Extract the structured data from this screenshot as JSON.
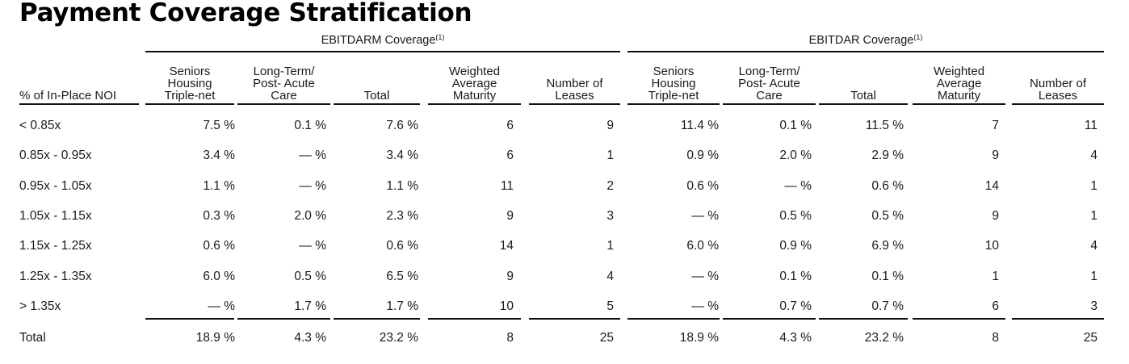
{
  "title": "Payment Coverage Stratification",
  "groups": {
    "ebitdarm": {
      "label": "EBITDARM Coverage",
      "footnote": "(1)"
    },
    "ebitdar": {
      "label": "EBITDAR Coverage",
      "footnote": "(1)"
    }
  },
  "headers": {
    "label": "% of In-Place NOI",
    "shtn": [
      "Seniors",
      "Housing",
      "Triple-net"
    ],
    "ltpac": [
      "Long-Term/",
      "Post- Acute",
      "Care"
    ],
    "total": "Total",
    "wam": [
      "Weighted",
      "Average",
      "Maturity"
    ],
    "leases": [
      "Number of",
      "Leases"
    ]
  },
  "rows": [
    {
      "label": "< 0.85x",
      "cells": [
        "7.5 %",
        "0.1 %",
        "7.6 %",
        "6",
        "9",
        "11.4 %",
        "0.1 %",
        "11.5 %",
        "7",
        "11"
      ]
    },
    {
      "label": "0.85x - 0.95x",
      "cells": [
        "3.4 %",
        "— %",
        "3.4 %",
        "6",
        "1",
        "0.9 %",
        "2.0 %",
        "2.9 %",
        "9",
        "4"
      ]
    },
    {
      "label": "0.95x - 1.05x",
      "cells": [
        "1.1 %",
        "— %",
        "1.1 %",
        "11",
        "2",
        "0.6 %",
        "— %",
        "0.6 %",
        "14",
        "1"
      ]
    },
    {
      "label": "1.05x - 1.15x",
      "cells": [
        "0.3 %",
        "2.0 %",
        "2.3 %",
        "9",
        "3",
        "— %",
        "0.5 %",
        "0.5 %",
        "9",
        "1"
      ]
    },
    {
      "label": "1.15x - 1.25x",
      "cells": [
        "0.6 %",
        "— %",
        "0.6 %",
        "14",
        "1",
        "6.0 %",
        "0.9 %",
        "6.9 %",
        "10",
        "4"
      ]
    },
    {
      "label": "1.25x - 1.35x",
      "cells": [
        "6.0 %",
        "0.5 %",
        "6.5 %",
        "9",
        "4",
        "— %",
        "0.1 %",
        "0.1 %",
        "1",
        "1"
      ]
    },
    {
      "label": "> 1.35x",
      "cells": [
        "— %",
        "1.7 %",
        "1.7 %",
        "10",
        "5",
        "— %",
        "0.7 %",
        "0.7 %",
        "6",
        "3"
      ]
    },
    {
      "label": "Total",
      "cells": [
        "18.9 %",
        "4.3 %",
        "23.2 %",
        "8",
        "25",
        "18.9 %",
        "4.3 %",
        "23.2 %",
        "8",
        "25"
      ]
    }
  ]
}
